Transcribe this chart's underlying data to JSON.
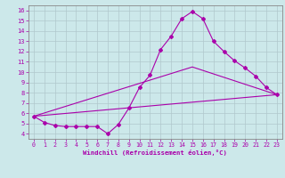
{
  "xlabel": "Windchill (Refroidissement éolien,°C)",
  "bg_color": "#cce8ea",
  "line_color": "#aa00aa",
  "grid_color": "#b0c8cc",
  "axis_color": "#888888",
  "xlim": [
    -0.5,
    23.5
  ],
  "ylim": [
    3.5,
    16.5
  ],
  "yticks": [
    4,
    5,
    6,
    7,
    8,
    9,
    10,
    11,
    12,
    13,
    14,
    15,
    16
  ],
  "xticks": [
    0,
    1,
    2,
    3,
    4,
    5,
    6,
    7,
    8,
    9,
    10,
    11,
    12,
    13,
    14,
    15,
    16,
    17,
    18,
    19,
    20,
    21,
    22,
    23
  ],
  "series1_x": [
    0,
    1,
    2,
    3,
    4,
    5,
    6,
    7,
    8,
    9,
    10,
    11,
    12,
    13,
    14,
    15,
    16,
    17,
    18,
    19,
    20,
    21,
    22,
    23
  ],
  "series1_y": [
    5.7,
    5.1,
    4.8,
    4.7,
    4.7,
    4.7,
    4.7,
    4.0,
    4.9,
    6.5,
    8.5,
    9.7,
    12.2,
    13.5,
    15.2,
    15.9,
    15.2,
    13.0,
    12.0,
    11.1,
    10.4,
    9.6,
    8.5,
    7.8
  ],
  "series2_x": [
    0,
    23
  ],
  "series2_y": [
    5.7,
    7.8
  ],
  "series3_x": [
    0,
    15,
    23
  ],
  "series3_y": [
    5.7,
    10.5,
    7.8
  ]
}
